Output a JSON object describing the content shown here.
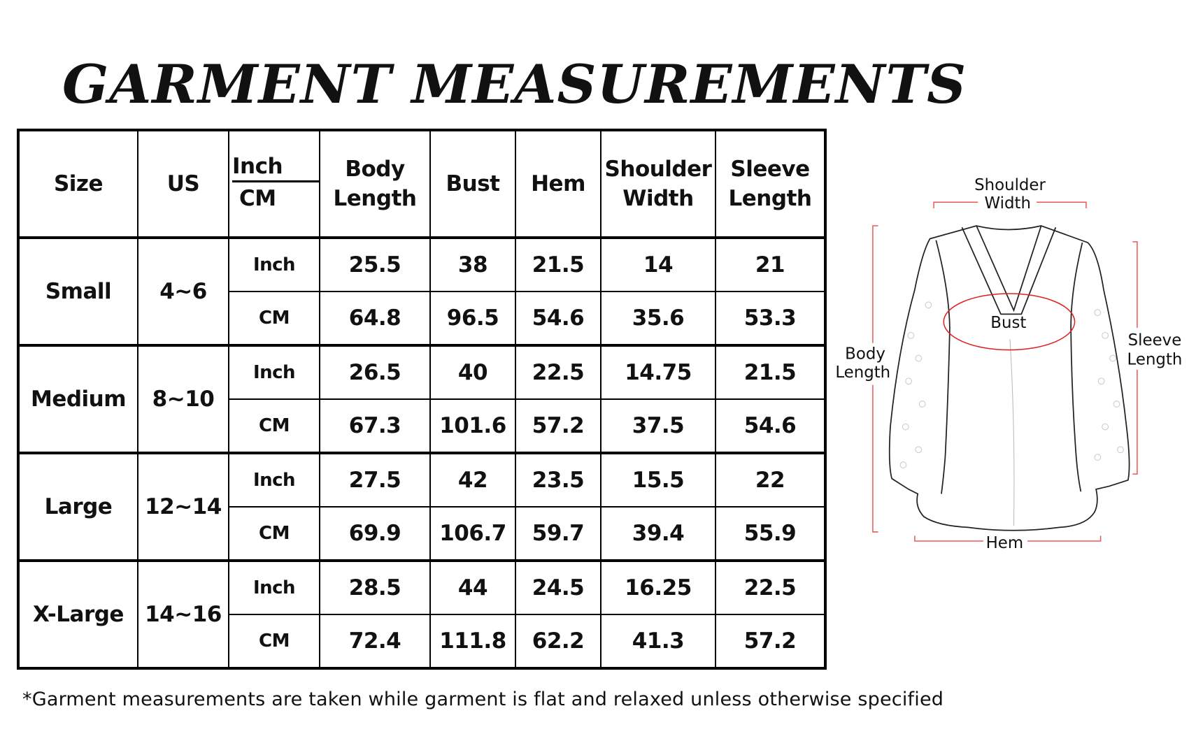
{
  "title": "GARMENT MEASUREMENTS",
  "table": {
    "headers": {
      "size": "Size",
      "us": "US",
      "unit_top": "Inch",
      "unit_bottom": "CM",
      "columns": [
        "Body Length",
        "Bust",
        "Hem",
        "Shoulder Width",
        "Sleeve Length"
      ]
    },
    "sizes": [
      {
        "name": "Small",
        "us": "4~6",
        "rows": [
          {
            "unit": "Inch",
            "values": [
              "25.5",
              "38",
              "21.5",
              "14",
              "21"
            ]
          },
          {
            "unit": "CM",
            "values": [
              "64.8",
              "96.5",
              "54.6",
              "35.6",
              "53.3"
            ]
          }
        ]
      },
      {
        "name": "Medium",
        "us": "8~10",
        "rows": [
          {
            "unit": "Inch",
            "values": [
              "26.5",
              "40",
              "22.5",
              "14.75",
              "21.5"
            ]
          },
          {
            "unit": "CM",
            "values": [
              "67.3",
              "101.6",
              "57.2",
              "37.5",
              "54.6"
            ]
          }
        ]
      },
      {
        "name": "Large",
        "us": "12~14",
        "rows": [
          {
            "unit": "Inch",
            "values": [
              "27.5",
              "42",
              "23.5",
              "15.5",
              "22"
            ]
          },
          {
            "unit": "CM",
            "values": [
              "69.9",
              "106.7",
              "59.7",
              "39.4",
              "55.9"
            ]
          }
        ]
      },
      {
        "name": "X-Large",
        "us": "14~16",
        "rows": [
          {
            "unit": "Inch",
            "values": [
              "28.5",
              "44",
              "24.5",
              "16.25",
              "22.5"
            ]
          },
          {
            "unit": "CM",
            "values": [
              "72.4",
              "111.8",
              "62.2",
              "41.3",
              "57.2"
            ]
          }
        ]
      }
    ]
  },
  "diagram": {
    "shoulder_width": [
      "Shoulder",
      "Width"
    ],
    "body_length": [
      "Body",
      "Length"
    ],
    "sleeve_length": [
      "Sleeve",
      "Length"
    ],
    "bust": "Bust",
    "hem": "Hem",
    "accent_color": "#e8595c"
  },
  "footnote": "*Garment measurements are taken while garment is flat and relaxed unless otherwise specified"
}
